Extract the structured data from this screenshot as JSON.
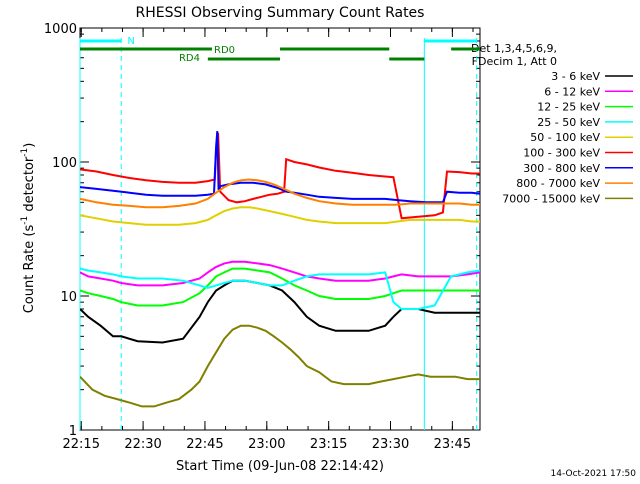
{
  "chart_data": {
    "type": "line",
    "title": "RHESSI Observing Summary Count Rates",
    "xlabel": "Start Time (09-Jun-08 22:14:42)",
    "ylabel_main": "Count Rate (s",
    "ylabel_sup1": "-1",
    "ylabel_mid": " detector",
    "ylabel_sup2": "-1",
    "ylabel_end": ")",
    "y_scale": "log",
    "ylim": [
      1,
      1000
    ],
    "xlim_min": [
      0,
      97
    ],
    "x_ticks": [
      {
        "label": "22:15",
        "min": 0.3
      },
      {
        "label": "22:30",
        "min": 15.3
      },
      {
        "label": "22:45",
        "min": 30.3
      },
      {
        "label": "23:00",
        "min": 45.3
      },
      {
        "label": "23:15",
        "min": 60.3
      },
      {
        "label": "23:30",
        "min": 75.3
      },
      {
        "label": "23:45",
        "min": 90.3
      }
    ],
    "y_ticks": [
      {
        "label": "1",
        "value": 1
      },
      {
        "label": "10",
        "value": 10
      },
      {
        "label": "100",
        "value": 100
      },
      {
        "label": "1000",
        "value": 1000
      }
    ],
    "legend_header": [
      "Det 1,3,4,5,6,9,",
      "FDecim 1, Att 0"
    ],
    "series": [
      {
        "name": "3 - 6 keV",
        "color": "#000000",
        "x": [
          0,
          2,
          5,
          8,
          10,
          14,
          20,
          25,
          29,
          31,
          33,
          35,
          37,
          40,
          43,
          46,
          49,
          52,
          55,
          58,
          62,
          66,
          70,
          74,
          76,
          78,
          82,
          86,
          90,
          94,
          97
        ],
        "y": [
          8,
          7,
          6,
          5,
          5,
          4.6,
          4.5,
          4.8,
          7,
          9,
          11,
          12,
          13,
          13,
          12.5,
          12,
          11,
          9,
          7,
          6,
          5.5,
          5.5,
          5.5,
          6,
          7,
          8,
          8,
          7.5,
          7.5,
          7.5,
          7.5
        ]
      },
      {
        "name": "6 - 12 keV",
        "color": "#ff00ff",
        "x": [
          0,
          2,
          5,
          8,
          10,
          14,
          20,
          25,
          29,
          31,
          33,
          35,
          37,
          40,
          43,
          46,
          49,
          52,
          55,
          58,
          62,
          66,
          70,
          74,
          76,
          78,
          82,
          86,
          90,
          94,
          97
        ],
        "y": [
          15,
          14,
          13.5,
          13,
          12.5,
          12,
          12,
          12.5,
          13.5,
          15,
          16.5,
          17.5,
          18,
          18,
          17.5,
          17,
          16,
          15,
          14,
          13.5,
          13,
          13,
          13,
          13.5,
          14,
          14.5,
          14,
          14,
          14,
          14.5,
          15
        ]
      },
      {
        "name": "12 - 25 keV",
        "color": "#00ff00",
        "x": [
          0,
          2,
          5,
          8,
          10,
          14,
          20,
          25,
          29,
          31,
          33,
          35,
          37,
          40,
          43,
          46,
          49,
          52,
          55,
          58,
          62,
          66,
          70,
          74,
          76,
          78,
          82,
          86,
          90,
          94,
          97
        ],
        "y": [
          11,
          10.5,
          10,
          9.5,
          9,
          8.5,
          8.5,
          9,
          10.5,
          12,
          14,
          15,
          16,
          16,
          15.5,
          15,
          13.5,
          12,
          11,
          10,
          9.5,
          9.5,
          9.5,
          10,
          10.5,
          11,
          11,
          11,
          11,
          11,
          11
        ]
      },
      {
        "name": "25 - 50 keV",
        "color": "#00ffff",
        "x": [
          0,
          2,
          5,
          8,
          10,
          14,
          20,
          25,
          29,
          31,
          33,
          35,
          37,
          40,
          43,
          46,
          49,
          52,
          55,
          58,
          62,
          66,
          70,
          74,
          76,
          78,
          82,
          86,
          90,
          94,
          97
        ],
        "y": [
          16,
          15.5,
          15,
          14.5,
          14,
          13.5,
          13.5,
          13,
          12,
          11.5,
          12,
          12.5,
          13,
          13,
          12.5,
          12,
          12,
          13,
          14,
          14.5,
          14.5,
          14.5,
          14.5,
          15,
          9,
          8,
          8,
          8.5,
          14,
          15,
          15.5
        ]
      },
      {
        "name": "50 - 100 keV",
        "color": "#e0d000",
        "x": [
          0,
          4,
          8,
          12,
          16,
          20,
          24,
          28,
          31,
          33,
          35,
          37,
          39,
          41,
          43,
          46,
          49,
          52,
          55,
          58,
          62,
          66,
          70,
          74,
          77,
          80,
          84,
          88,
          92,
          95,
          97
        ],
        "y": [
          40,
          38,
          36,
          35,
          34,
          34,
          34,
          35,
          37,
          40,
          43,
          45,
          46,
          46,
          45,
          43,
          41,
          39,
          37,
          36,
          35,
          35,
          35,
          35,
          36,
          37,
          37,
          37,
          37,
          36,
          36
        ]
      },
      {
        "name": "100 - 300 keV",
        "color": "#ff0000",
        "x": [
          0,
          4,
          8,
          12,
          16,
          20,
          24,
          28,
          31,
          32.7,
          33,
          33.5,
          34,
          36,
          38,
          40,
          42,
          44,
          46,
          48,
          49.5,
          50,
          52,
          55,
          58,
          62,
          66,
          70,
          74,
          76,
          78,
          82,
          86,
          88,
          89,
          92,
          95,
          97
        ],
        "y": [
          88,
          85,
          80,
          76,
          73,
          71,
          70,
          70,
          72,
          74,
          120,
          165,
          60,
          52,
          50,
          51,
          53,
          55,
          57,
          58,
          60,
          105,
          100,
          96,
          91,
          86,
          83,
          80,
          78,
          77,
          38,
          39,
          40,
          42,
          85,
          84,
          82,
          82
        ]
      },
      {
        "name": "300 - 800 keV",
        "color": "#0000ff",
        "x": [
          0,
          4,
          8,
          12,
          16,
          20,
          24,
          28,
          31,
          32.5,
          33,
          33.3,
          33.6,
          34,
          36,
          39,
          42,
          45,
          48,
          50,
          52,
          55,
          58,
          62,
          66,
          70,
          74,
          77,
          80,
          84,
          88,
          89,
          92,
          95,
          97
        ],
        "y": [
          65,
          63,
          61,
          59,
          57,
          56,
          56,
          56,
          57,
          58,
          130,
          170,
          62,
          66,
          68,
          70,
          70,
          68,
          64,
          60,
          59,
          57,
          55,
          54,
          53,
          53,
          53,
          52,
          51,
          50,
          50,
          60,
          59,
          59,
          58
        ]
      },
      {
        "name": "800 - 7000 keV",
        "color": "#ff8000",
        "x": [
          0,
          4,
          8,
          12,
          16,
          20,
          24,
          28,
          31,
          33,
          35,
          37,
          39,
          41,
          43,
          45,
          47,
          49,
          52,
          55,
          58,
          62,
          66,
          70,
          74,
          77,
          80,
          84,
          88,
          92,
          95,
          97
        ],
        "y": [
          53,
          50,
          48,
          47,
          46,
          46,
          47,
          49,
          53,
          59,
          65,
          70,
          73,
          74,
          73,
          71,
          68,
          64,
          58,
          54,
          51,
          49,
          48,
          48,
          48,
          48,
          49,
          49,
          49,
          49,
          48,
          48
        ]
      },
      {
        "name": "7000 - 15000 keV",
        "color": "#808000",
        "x": [
          0,
          3,
          6,
          9,
          12,
          15,
          18,
          21,
          24,
          27,
          29,
          31,
          33,
          35,
          37,
          39,
          41,
          43,
          45,
          47,
          49,
          51,
          53,
          55,
          58,
          61,
          64,
          67,
          70,
          73,
          76,
          79,
          82,
          85,
          88,
          91,
          94,
          97
        ],
        "y": [
          2.5,
          2,
          1.8,
          1.7,
          1.6,
          1.5,
          1.5,
          1.6,
          1.7,
          2,
          2.3,
          3,
          3.8,
          4.8,
          5.6,
          6,
          6,
          5.8,
          5.5,
          5,
          4.5,
          4,
          3.5,
          3,
          2.7,
          2.3,
          2.2,
          2.2,
          2.2,
          2.3,
          2.4,
          2.5,
          2.6,
          2.5,
          2.5,
          2.5,
          2.4,
          2.4
        ]
      }
    ],
    "attenuator_states": {
      "segments_label": "RD0",
      "segments_label_2": "RD4",
      "flag_label": "N"
    },
    "footer_date": "14-Oct-2021 17:50"
  }
}
